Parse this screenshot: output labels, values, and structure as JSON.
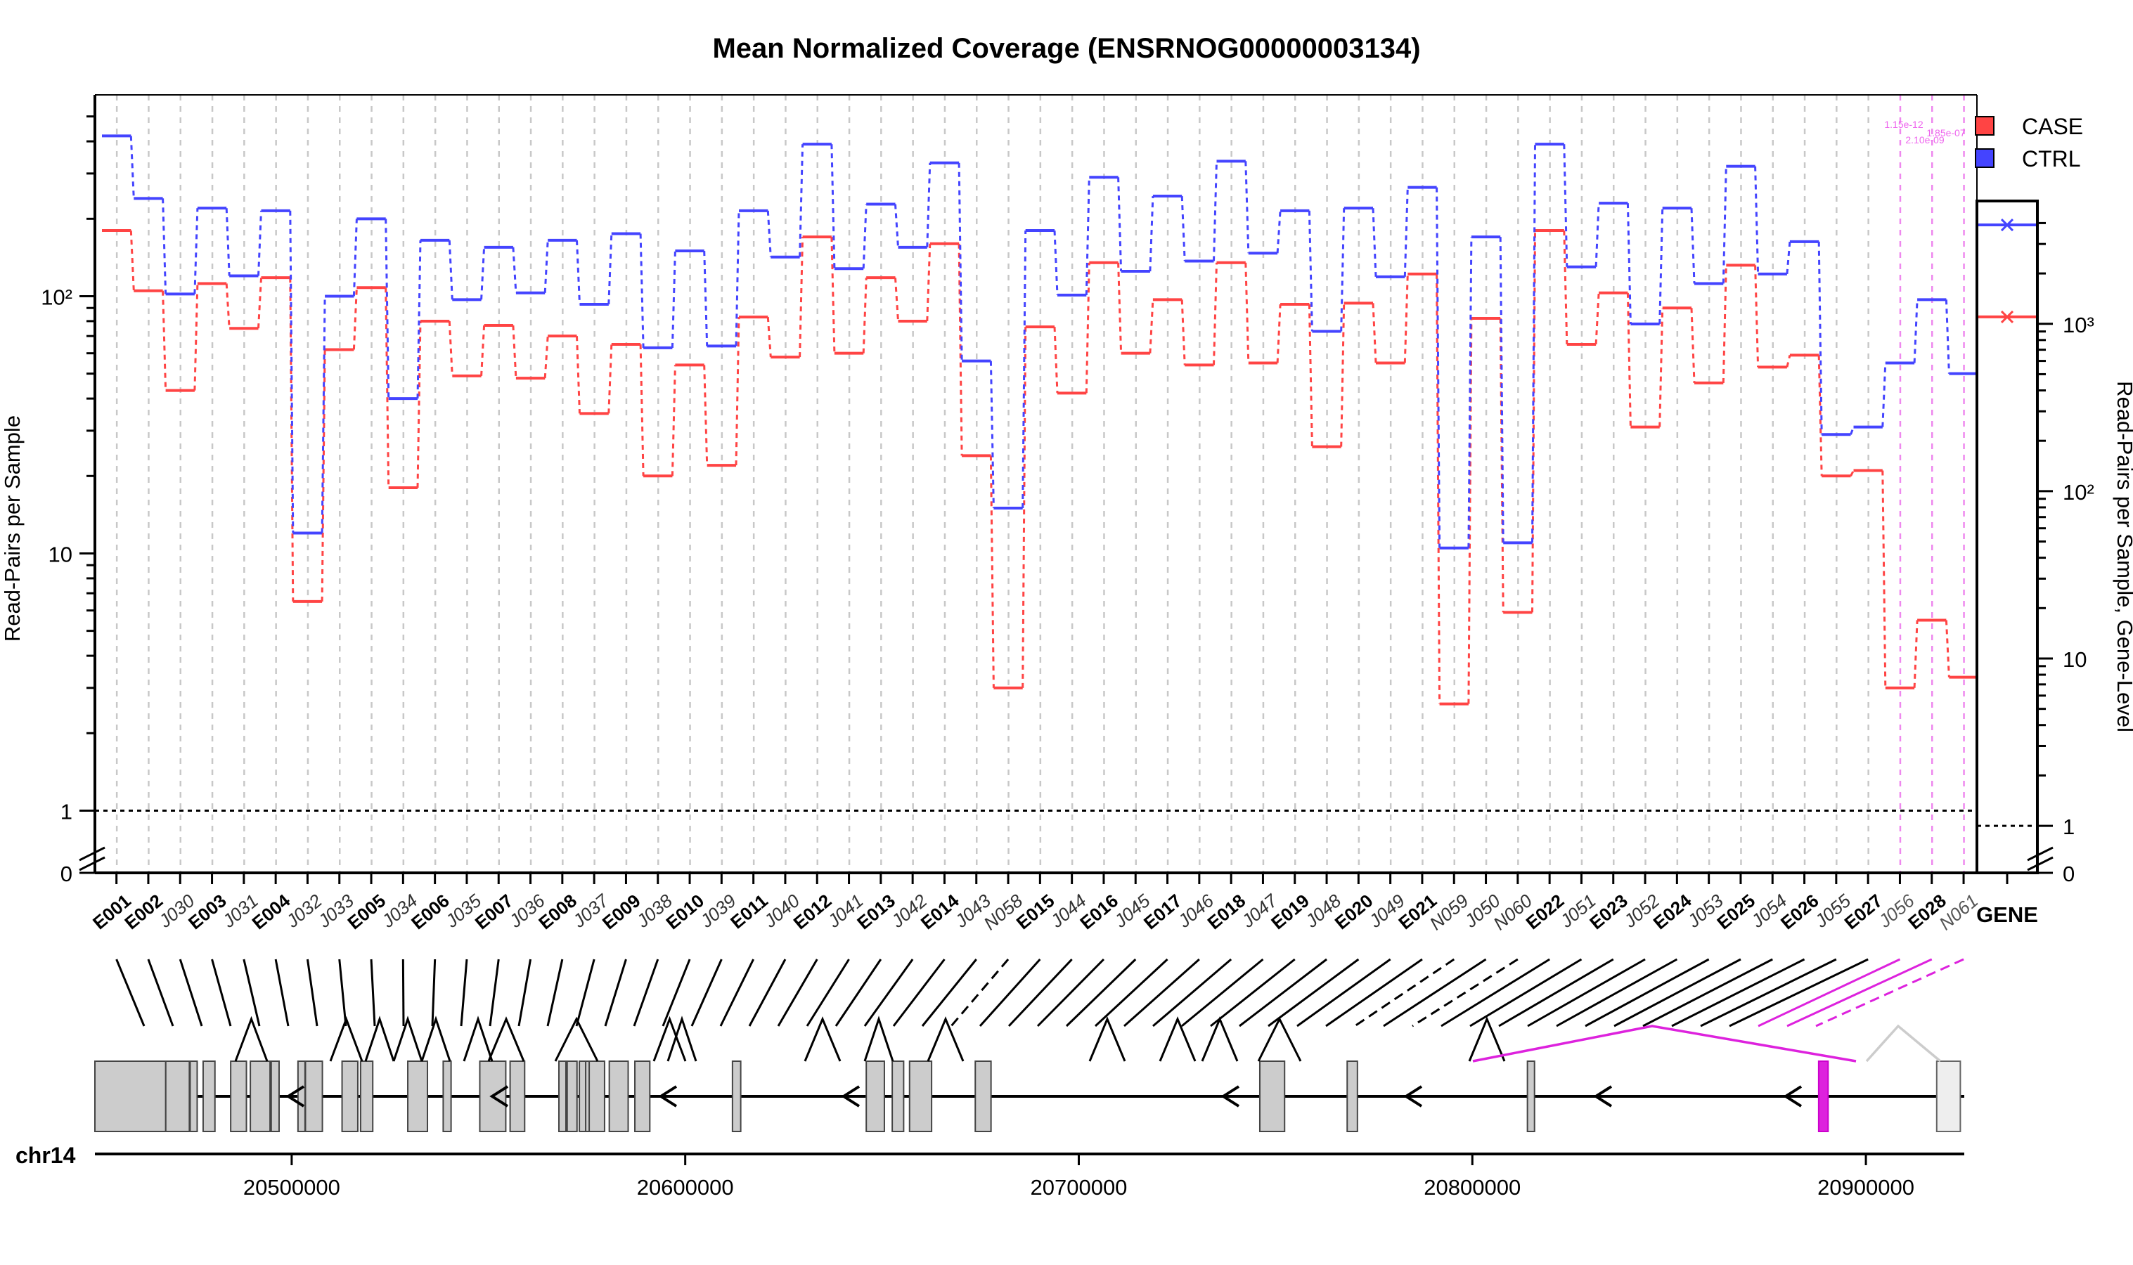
{
  "chart_data": {
    "type": "line",
    "title": "Mean Normalized Coverage (ENSRNOG00000003134)",
    "ylabel": "Read-Pairs per Sample",
    "ylabel_right": "Read-Pairs per Sample, Gene-Level",
    "y_scale": "log",
    "y_ticks_left": [
      "0",
      "1",
      "10",
      "10²"
    ],
    "y_ticks_right": [
      "0",
      "1",
      "10",
      "10²",
      "10³"
    ],
    "reference_line": 1,
    "grid": "vertical dashed",
    "legend": {
      "placement": "top-right",
      "entries": [
        {
          "name": "CASE",
          "color": "#ff4444"
        },
        {
          "name": "CTRL",
          "color": "#4444ff"
        }
      ]
    },
    "categories": [
      "E001",
      "E002",
      "J030",
      "E003",
      "J031",
      "E004",
      "J032",
      "J033",
      "E005",
      "J034",
      "E006",
      "J035",
      "E007",
      "J036",
      "E008",
      "J037",
      "E009",
      "J038",
      "E010",
      "J039",
      "E011",
      "J040",
      "E012",
      "J041",
      "E013",
      "J042",
      "E014",
      "J043",
      "N058",
      "E015",
      "J044",
      "E016",
      "J045",
      "E017",
      "J046",
      "E018",
      "J047",
      "E019",
      "J048",
      "E020",
      "J049",
      "E021",
      "N059",
      "J050",
      "N060",
      "E022",
      "J051",
      "E023",
      "J052",
      "E024",
      "J053",
      "E025",
      "J054",
      "E026",
      "J055",
      "E027",
      "J056",
      "E028",
      "N061"
    ],
    "category_style": [
      "bold",
      "bold",
      "italic",
      "bold",
      "italic",
      "bold",
      "italic",
      "italic",
      "bold",
      "italic",
      "bold",
      "italic",
      "bold",
      "italic",
      "bold",
      "italic",
      "bold",
      "italic",
      "bold",
      "italic",
      "bold",
      "italic",
      "bold",
      "italic",
      "bold",
      "italic",
      "bold",
      "italic",
      "italic",
      "bold",
      "italic",
      "bold",
      "italic",
      "bold",
      "italic",
      "bold",
      "italic",
      "bold",
      "italic",
      "bold",
      "italic",
      "bold",
      "italic",
      "italic",
      "italic",
      "bold",
      "italic",
      "bold",
      "italic",
      "bold",
      "italic",
      "bold",
      "italic",
      "bold",
      "italic",
      "bold",
      "italic",
      "bold",
      "italic"
    ],
    "series": [
      {
        "name": "CASE",
        "color": "#ff4444",
        "values": [
          180,
          105,
          43,
          112,
          75,
          118,
          6.5,
          62,
          108,
          18,
          80,
          49,
          77,
          48,
          70,
          35,
          65,
          20,
          54,
          22,
          83,
          58,
          170,
          60,
          118,
          80,
          160,
          24,
          3,
          76,
          42,
          135,
          60,
          97,
          54,
          135,
          55,
          93,
          26,
          94,
          55,
          122,
          2.6,
          82,
          5.9,
          180,
          65,
          103,
          31,
          90,
          46,
          132,
          53,
          59,
          20,
          21,
          3,
          5.5,
          3.3
        ],
        "gene_level": 1100
      },
      {
        "name": "CTRL",
        "color": "#4444ff",
        "values": [
          420,
          240,
          102,
          220,
          120,
          215,
          12,
          100,
          200,
          40,
          165,
          97,
          155,
          103,
          165,
          93,
          175,
          63,
          150,
          64,
          215,
          142,
          390,
          128,
          228,
          155,
          330,
          56,
          15,
          180,
          101,
          290,
          125,
          245,
          137,
          335,
          147,
          215,
          73,
          220,
          119,
          265,
          10.5,
          170,
          11,
          390,
          130,
          230,
          78,
          220,
          112,
          320,
          122,
          163,
          29,
          31,
          55,
          97,
          50
        ],
        "gene_level": 3900
      }
    ],
    "flagged_features": {
      "features": [
        "J056",
        "E028",
        "N061"
      ],
      "color": "#ee22ee",
      "labels": [
        "1.15e-12",
        "2.10e-09",
        "1.85e-07"
      ]
    },
    "gene_column_label": "GENE",
    "chromosome_label": "chr14",
    "genomic_axis": {
      "min": 20450000,
      "max": 20925000,
      "ticks": [
        20500000,
        20600000,
        20700000,
        20800000,
        20900000
      ]
    },
    "strand": "-",
    "exons": [
      {
        "id": "E001",
        "start": 20450000,
        "end": 20468000
      },
      {
        "id": "E002",
        "start": 20468000,
        "end": 20474000
      },
      {
        "id": "E003",
        "start": 20474200,
        "end": 20475300
      },
      {
        "id": "E004",
        "start": 20477500,
        "end": 20480500
      },
      {
        "id": "E005",
        "start": 20484500,
        "end": 20488500
      },
      {
        "id": "E006",
        "start": 20489500,
        "end": 20494500
      },
      {
        "id": "E007",
        "start": 20494800,
        "end": 20496800
      },
      {
        "id": "E008",
        "start": 20501600,
        "end": 20502800
      },
      {
        "id": "E009",
        "start": 20503500,
        "end": 20507800
      },
      {
        "id": "E010",
        "start": 20512800,
        "end": 20516800
      },
      {
        "id": "E011",
        "start": 20517500,
        "end": 20520600
      },
      {
        "id": "E012",
        "start": 20529500,
        "end": 20534500
      },
      {
        "id": "E013",
        "start": 20538500,
        "end": 20540500
      },
      {
        "id": "E014",
        "start": 20547800,
        "end": 20554400
      },
      {
        "id": "E015",
        "start": 20555500,
        "end": 20559200
      },
      {
        "id": "E016",
        "start": 20567900,
        "end": 20569500
      },
      {
        "id": "E017",
        "start": 20570000,
        "end": 20572500
      },
      {
        "id": "E018",
        "start": 20573100,
        "end": 20574300
      },
      {
        "id": "E019",
        "start": 20574700,
        "end": 20575200
      },
      {
        "id": "E020",
        "start": 20575600,
        "end": 20579500
      },
      {
        "id": "E021",
        "start": 20580700,
        "end": 20585500
      },
      {
        "id": "E022",
        "start": 20587200,
        "end": 20591000
      },
      {
        "id": "E023",
        "start": 20612000,
        "end": 20614100
      },
      {
        "id": "E024",
        "start": 20646000,
        "end": 20650600
      },
      {
        "id": "E025",
        "start": 20652600,
        "end": 20655500
      },
      {
        "id": "E026",
        "start": 20657000,
        "end": 20662600
      },
      {
        "id": "E027",
        "start": 20673700,
        "end": 20677700
      },
      {
        "id": "E028",
        "start": 20746000,
        "end": 20752300
      },
      {
        "id": "E029",
        "start": 20768200,
        "end": 20770800
      },
      {
        "id": "E030",
        "start": 20814000,
        "end": 20815800
      },
      {
        "id": "E031",
        "start": 20888000,
        "end": 20890400
      },
      {
        "id": "E032",
        "start": 20918000,
        "end": 20924000
      }
    ]
  }
}
